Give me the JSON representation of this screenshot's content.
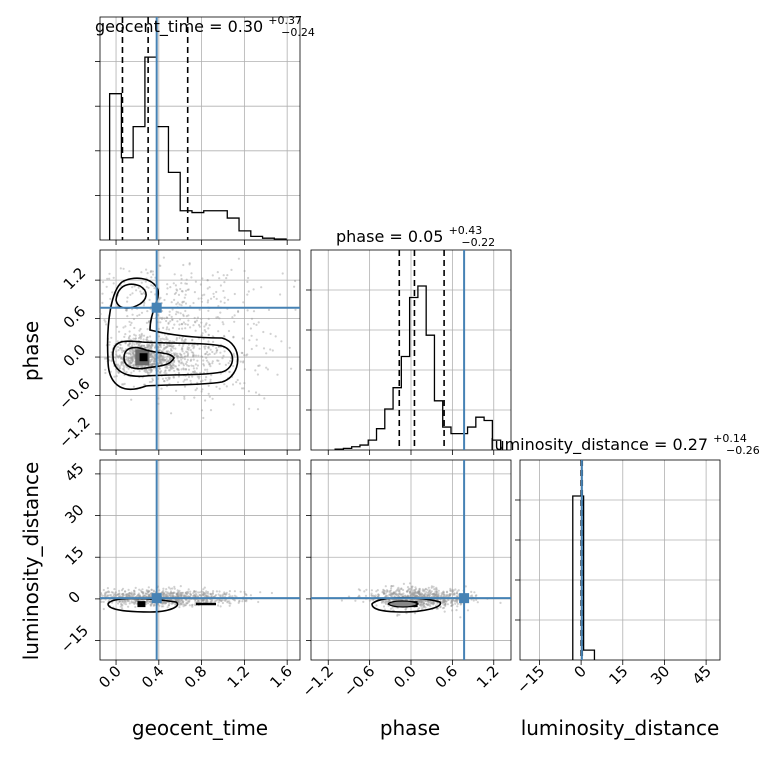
{
  "figure": {
    "type": "corner",
    "colors": {
      "truth": "#4682b4",
      "contour": "#000000",
      "samples": "#9a9a9a",
      "grid": "#b0b0b0",
      "quantile": "#000000"
    }
  },
  "chart_data": [
    {
      "type": "histogram",
      "parameter": "geocent_time",
      "title": "geocent_time = 0.30",
      "title_sup": "+0.37",
      "title_sub": "−0.24",
      "xlim": [
        -0.15,
        1.72
      ],
      "bins": [
        -0.06,
        0.05,
        0.16,
        0.27,
        0.38,
        0.49,
        0.6,
        0.71,
        0.82,
        0.93,
        1.04,
        1.15,
        1.26,
        1.37,
        1.48,
        1.59
      ],
      "counts": [
        0.8,
        0.45,
        0.62,
        1.0,
        0.62,
        0.37,
        0.16,
        0.15,
        0.16,
        0.16,
        0.12,
        0.05,
        0.02,
        0.01,
        0.005
      ],
      "quantiles": [
        0.06,
        0.3,
        0.67
      ],
      "truth": 0.38
    },
    {
      "type": "histogram",
      "parameter": "phase",
      "title": "phase = 0.05",
      "title_sup": "+0.43",
      "title_sub": "−0.22",
      "xlim": [
        -1.45,
        1.45
      ],
      "bins": [
        -1.1,
        -0.98,
        -0.86,
        -0.74,
        -0.62,
        -0.5,
        -0.38,
        -0.26,
        -0.14,
        -0.02,
        0.1,
        0.22,
        0.34,
        0.46,
        0.58,
        0.7,
        0.82,
        0.94,
        1.06,
        1.18,
        1.3
      ],
      "counts": [
        0.005,
        0.01,
        0.02,
        0.03,
        0.06,
        0.13,
        0.25,
        0.38,
        0.57,
        0.93,
        1.0,
        0.7,
        0.3,
        0.14,
        0.1,
        0.1,
        0.14,
        0.2,
        0.18,
        0.06
      ],
      "quantiles": [
        -0.17,
        0.05,
        0.48
      ],
      "truth": 0.77
    },
    {
      "type": "histogram",
      "parameter": "luminosity_distance",
      "title": "luminosity_distance = 0.27",
      "title_sup": "+0.14",
      "title_sub": "−0.26",
      "xlim": [
        -22,
        50
      ],
      "bins": [
        -3.0,
        0.9,
        4.8
      ],
      "counts": [
        1.0,
        0.06
      ],
      "quantiles": [
        0.01,
        0.27,
        0.41
      ],
      "truth": 0.27
    },
    {
      "type": "scatter",
      "x_param": "geocent_time",
      "y_param": "phase",
      "xlim": [
        -0.15,
        1.72
      ],
      "ylim": [
        -1.45,
        1.67
      ],
      "xticks": [
        "0.0",
        "0.4",
        "0.8",
        "1.2",
        "1.6"
      ],
      "yticks": [
        "−1.2",
        "−0.6",
        "0.0",
        "0.6",
        "1.2"
      ],
      "ytick_values": [
        -1.2,
        -0.6,
        0.0,
        0.6,
        1.2
      ],
      "ylabel": "phase",
      "truth": [
        0.38,
        0.77
      ]
    },
    {
      "type": "scatter",
      "x_param": "geocent_time",
      "y_param": "luminosity_distance",
      "xlim": [
        -0.15,
        1.72
      ],
      "ylim": [
        -22,
        50
      ],
      "xticks": [
        "0.0",
        "0.4",
        "0.8",
        "1.2",
        "1.6"
      ],
      "xtick_values": [
        0.0,
        0.4,
        0.8,
        1.2,
        1.6
      ],
      "yticks": [
        "−15",
        "0",
        "15",
        "30",
        "45"
      ],
      "ytick_values": [
        -15,
        0,
        15,
        30,
        45
      ],
      "xlabel": "geocent_time",
      "ylabel": "luminosity_distance",
      "truth": [
        0.38,
        0.27
      ]
    },
    {
      "type": "scatter",
      "x_param": "phase",
      "y_param": "luminosity_distance",
      "xlim": [
        -1.45,
        1.45
      ],
      "ylim": [
        -22,
        50
      ],
      "xticks": [
        "−1.2",
        "−0.6",
        "0.0",
        "0.6",
        "1.2"
      ],
      "xtick_values": [
        -1.2,
        -0.6,
        0.0,
        0.6,
        1.2
      ],
      "xlabel": "phase",
      "truth": [
        0.77,
        0.27
      ]
    },
    {
      "type": "histogram-axis",
      "parameter": "luminosity_distance",
      "xlim": [
        -22,
        50
      ],
      "xticks": [
        "−15",
        "0",
        "15",
        "30",
        "45"
      ],
      "xtick_values": [
        -15,
        0,
        15,
        30,
        45
      ],
      "xlabel": "luminosity_distance"
    }
  ]
}
